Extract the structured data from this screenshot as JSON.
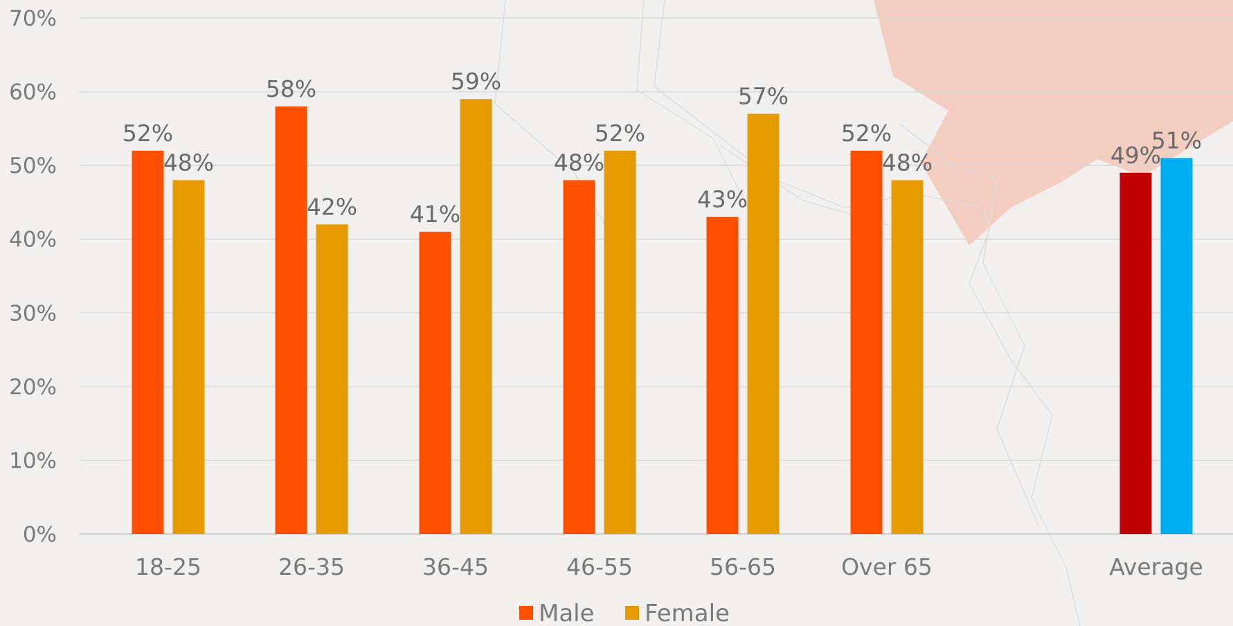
{
  "chart_data": {
    "type": "bar",
    "categories": [
      "18-25",
      "26-35",
      "36-45",
      "46-55",
      "56-65",
      "Over 65",
      "Average"
    ],
    "series": [
      {
        "name": "Male",
        "values": [
          52,
          58,
          41,
          48,
          43,
          52,
          49
        ],
        "labels": [
          "52%",
          "58%",
          "41%",
          "48%",
          "43%",
          "52%",
          "49%"
        ]
      },
      {
        "name": "Female",
        "values": [
          48,
          42,
          59,
          52,
          57,
          48,
          51
        ],
        "labels": [
          "48%",
          "42%",
          "59%",
          "52%",
          "57%",
          "48%",
          "51%"
        ]
      }
    ],
    "ylim": [
      0,
      70
    ],
    "y_ticks": [
      "0%",
      "10%",
      "20%",
      "30%",
      "40%",
      "50%",
      "60%",
      "70%"
    ],
    "y_tick_values": [
      0,
      10,
      20,
      30,
      40,
      50,
      60,
      70
    ],
    "xlabel": "",
    "ylabel": "",
    "title": "",
    "grid": true,
    "legend_position": "bottom",
    "colors": {
      "male": "#ff4f00",
      "female": "#e59b00",
      "average_male": "#c00000",
      "average_female": "#00aeef",
      "gridline": "#d9d9d9",
      "decor": "#f4c2b2"
    },
    "legend": [
      {
        "name": "Male",
        "color": "#ff4f00"
      },
      {
        "name": "Female",
        "color": "#e59b00"
      }
    ]
  }
}
